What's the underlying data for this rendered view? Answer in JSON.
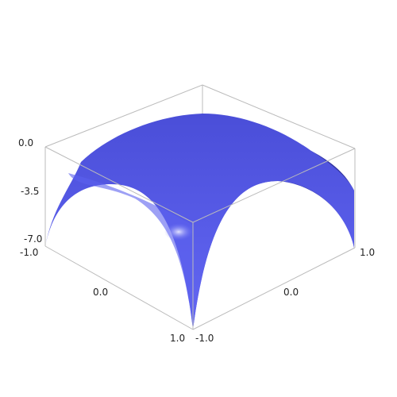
{
  "chart_data": {
    "type": "surface3d",
    "title": "",
    "surface_color": "#5555ee",
    "frame_color": "#bbbbbb",
    "background": "#ffffff",
    "x_range": [
      -1.0,
      1.0
    ],
    "y_range": [
      -1.0,
      1.0
    ],
    "z_range": [
      -7.0,
      0.0
    ],
    "x_ticks": [
      "-1.0",
      "0.0",
      "1.0"
    ],
    "y_ticks": [
      "-1.0",
      "0.0",
      "1.0"
    ],
    "z_ticks": [
      "-7.0",
      "-3.5",
      "0.0"
    ],
    "corner_values": {
      "x_-1_y_-1": -7.0,
      "x_1_y_-1": -7.0,
      "x_-1_y_1": -7.0,
      "x_1_y_1": -7.0
    },
    "center_value": 0.0,
    "grid": false
  }
}
